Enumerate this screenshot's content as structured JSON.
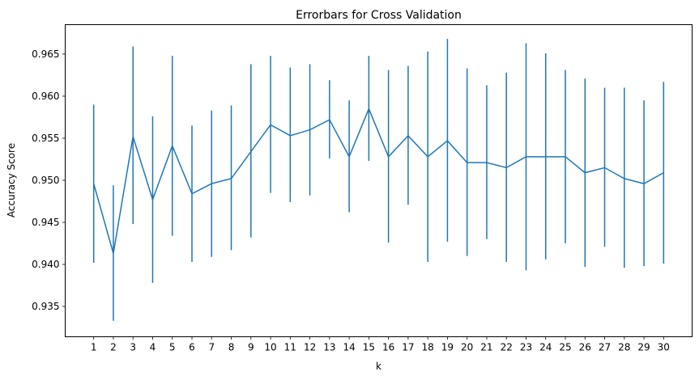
{
  "chart_data": {
    "type": "line",
    "title": "Errorbars for Cross Validation",
    "xlabel": "k",
    "ylabel": "Accuracy Score",
    "x": [
      1,
      2,
      3,
      4,
      5,
      6,
      7,
      8,
      9,
      10,
      11,
      12,
      13,
      14,
      15,
      16,
      17,
      18,
      19,
      20,
      21,
      22,
      23,
      24,
      25,
      26,
      27,
      28,
      29,
      30
    ],
    "xticks": [
      "1",
      "2",
      "3",
      "4",
      "5",
      "6",
      "7",
      "8",
      "9",
      "10",
      "11",
      "12",
      "13",
      "14",
      "15",
      "16",
      "17",
      "18",
      "19",
      "20",
      "21",
      "22",
      "23",
      "24",
      "25",
      "26",
      "27",
      "28",
      "29",
      "30"
    ],
    "xlim": [
      -0.45,
      31.45
    ],
    "ylim": [
      0.9314,
      0.9685
    ],
    "yticks": [
      "0.935",
      "0.940",
      "0.945",
      "0.950",
      "0.955",
      "0.960",
      "0.965"
    ],
    "ytick_values": [
      0.935,
      0.94,
      0.945,
      0.95,
      0.955,
      0.96,
      0.965
    ],
    "grid": false,
    "color": "#1f77b4",
    "series": [
      {
        "values": [
          0.9496,
          0.9413,
          0.9552,
          0.9477,
          0.9541,
          0.9484,
          0.9496,
          0.9502,
          0.9534,
          0.9566,
          0.9553,
          0.956,
          0.9572,
          0.9528,
          0.9585,
          0.9528,
          0.9553,
          0.9528,
          0.9547,
          0.9521,
          0.9521,
          0.9515,
          0.9528,
          0.9528,
          0.9528,
          0.9509,
          0.9515,
          0.9502,
          0.9496,
          0.9509
        ],
        "lower": [
          0.9402,
          0.9333,
          0.9448,
          0.9378,
          0.9434,
          0.9403,
          0.9409,
          0.9417,
          0.9432,
          0.9485,
          0.9474,
          0.9482,
          0.9526,
          0.9462,
          0.9523,
          0.9426,
          0.9471,
          0.9403,
          0.9427,
          0.941,
          0.943,
          0.9403,
          0.9393,
          0.9406,
          0.9425,
          0.9397,
          0.9421,
          0.9396,
          0.9398,
          0.9401
        ],
        "upper": [
          0.959,
          0.9494,
          0.9659,
          0.9576,
          0.9648,
          0.9565,
          0.9583,
          0.9589,
          0.9638,
          0.9648,
          0.9634,
          0.9638,
          0.9619,
          0.9595,
          0.9648,
          0.9631,
          0.9636,
          0.9653,
          0.9668,
          0.9633,
          0.9613,
          0.9628,
          0.9663,
          0.9651,
          0.9631,
          0.9621,
          0.961,
          0.961,
          0.9595,
          0.9617
        ]
      }
    ]
  }
}
